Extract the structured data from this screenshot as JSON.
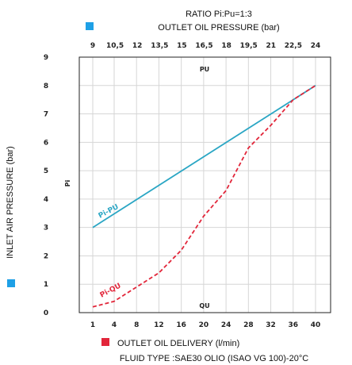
{
  "chart_data": {
    "type": "line",
    "title": "RATIO Pi:Pu=1:3",
    "top_axis_label": "OUTLET OIL PRESSURE (bar)",
    "top_ticks": [
      "9",
      "10,5",
      "12",
      "13,5",
      "15",
      "16,5",
      "18",
      "19,5",
      "21",
      "22,5",
      "24"
    ],
    "xlabel": "OUTLET OIL DELIVERY (l/min)",
    "x_ticks": [
      "1",
      "4",
      "8",
      "12",
      "16",
      "20",
      "24",
      "28",
      "32",
      "36",
      "40"
    ],
    "ylabel": "INLET AIR PRESSURE (bar)",
    "y_ticks": [
      "0",
      "1",
      "2",
      "3",
      "4",
      "5",
      "6",
      "7",
      "8",
      "9"
    ],
    "ylim": [
      0,
      9
    ],
    "footer": "FLUID TYPE :SAE30 OLIO (ISAO VG 100)-20°C",
    "annotations": {
      "pu": "PU",
      "qu": "QU",
      "pi": "Pi"
    },
    "grid": true,
    "series": [
      {
        "name": "Pi-PU",
        "color": "#2aa6c4",
        "style": "solid",
        "x_axis": "top",
        "x": [
          9,
          24
        ],
        "y": [
          3.0,
          8.0
        ]
      },
      {
        "name": "Pi-QU",
        "color": "#e2263a",
        "style": "dashed",
        "x_axis": "bottom",
        "x": [
          1,
          4,
          8,
          12,
          16,
          20,
          24,
          28,
          32,
          36,
          40
        ],
        "y": [
          0.2,
          0.4,
          0.9,
          1.4,
          2.2,
          3.4,
          4.3,
          5.8,
          6.6,
          7.5,
          8.0
        ]
      }
    ],
    "colors": {
      "top_marker": "#1ea0e6",
      "left_marker": "#1ea0e6",
      "bottom_marker": "#e2263a"
    }
  }
}
